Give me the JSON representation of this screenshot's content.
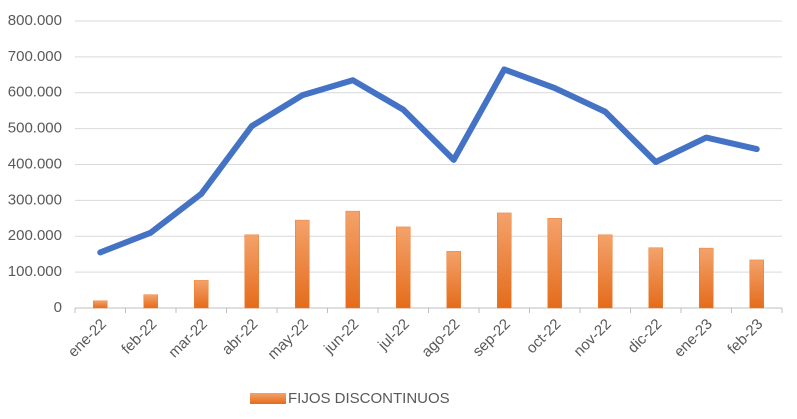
{
  "chart_data": {
    "type": "bar",
    "categories": [
      "ene-22",
      "feb-22",
      "mar-22",
      "abr-22",
      "may-22",
      "jun-22",
      "jul-22",
      "ago-22",
      "sep-22",
      "oct-22",
      "nov-22",
      "dic-22",
      "ene-23",
      "feb-23"
    ],
    "series": [
      {
        "name": "FIJOS DISCONTINUOS",
        "type": "bar",
        "color": "#ed7d31",
        "values": [
          20000,
          37000,
          77000,
          204000,
          245000,
          270000,
          226000,
          158000,
          265000,
          250000,
          204000,
          168000,
          167000,
          134000
        ]
      },
      {
        "type": "line",
        "color": "#4472c4",
        "values": [
          155000,
          210000,
          318000,
          507000,
          593000,
          635000,
          553000,
          413000,
          665000,
          613000,
          547000,
          407000,
          475000,
          443000
        ]
      }
    ],
    "ylim": [
      0,
      800000
    ],
    "yticks": [
      0,
      {
        "value": 100000,
        "label": "100.000"
      },
      {
        "value": 200000,
        "label": "200.000"
      },
      {
        "value": 300000,
        "label": "300.000"
      },
      {
        "value": 400000,
        "label": "400.000"
      },
      {
        "value": 500000,
        "label": "500.000"
      },
      {
        "value": 600000,
        "label": "600.000"
      },
      {
        "value": 700000,
        "label": "700.000"
      },
      {
        "value": 800000,
        "label": "800.000"
      }
    ],
    "grid": true,
    "legend": "bottom"
  }
}
